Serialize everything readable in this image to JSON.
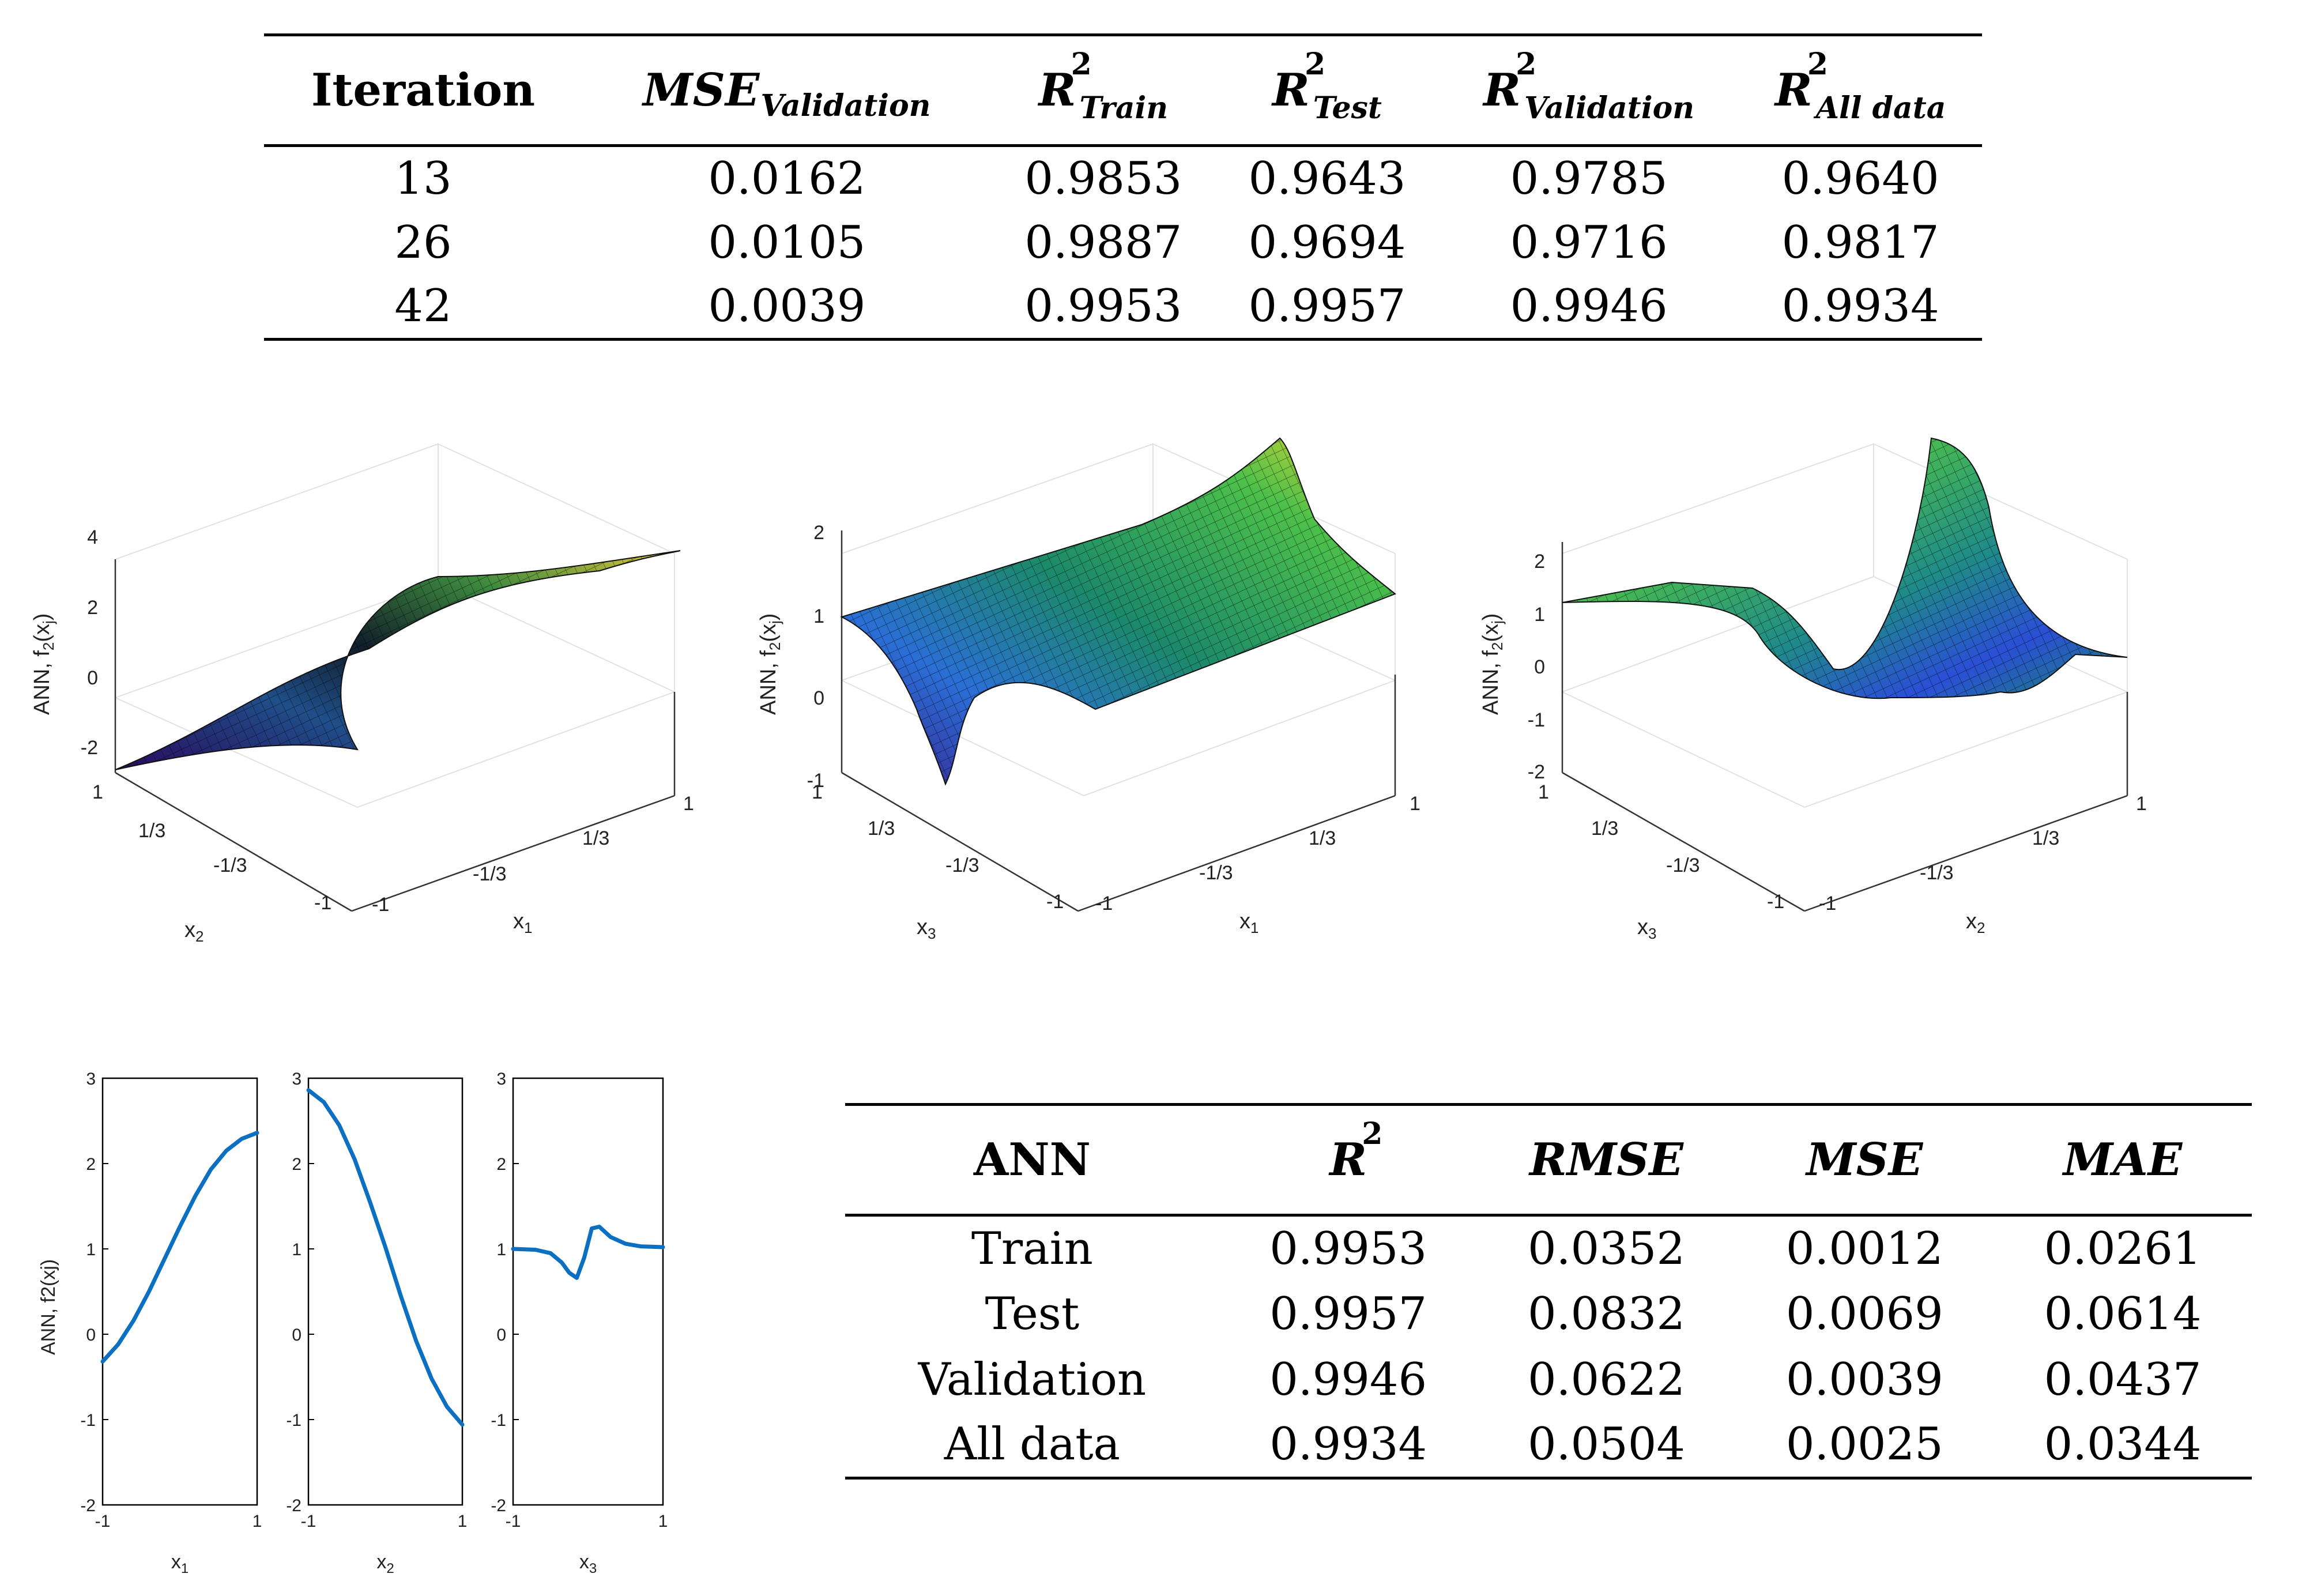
{
  "table1": {
    "headers": [
      "Iteration",
      "MSE",
      "Validation",
      "R",
      "2",
      "Train",
      "Test",
      "Validation",
      "All data"
    ],
    "rows": [
      [
        "13",
        "0.0162",
        "0.9853",
        "0.9643",
        "0.9785",
        "0.9640"
      ],
      [
        "26",
        "0.0105",
        "0.9887",
        "0.9694",
        "0.9716",
        "0.9817"
      ],
      [
        "42",
        "0.0039",
        "0.9953",
        "0.9957",
        "0.9946",
        "0.9934"
      ]
    ]
  },
  "table2": {
    "headers": [
      "ANN",
      "R",
      "2",
      "RMSE",
      "MSE",
      "MAE"
    ],
    "rows": [
      [
        "Train",
        "0.9953",
        "0.0352",
        "0.0012",
        "0.0261"
      ],
      [
        "Test",
        "0.9957",
        "0.0832",
        "0.0069",
        "0.0614"
      ],
      [
        "Validation",
        "0.9946",
        "0.0622",
        "0.0039",
        "0.0437"
      ],
      [
        "All data",
        "0.9934",
        "0.0504",
        "0.0025",
        "0.0344"
      ]
    ]
  },
  "surfaces": [
    {
      "zlabel": "ANN, f",
      "zlabel_sub": "2",
      "zlabel_arg": "(x",
      "zlabel_arg_sub": "j",
      "zlabel_close": ")",
      "zticks": [
        "4",
        "2",
        "0",
        "-2"
      ],
      "left_axis": "x",
      "left_axis_sub": "2",
      "right_axis": "x",
      "right_axis_sub": "1",
      "left_ticks": [
        "1",
        "1/3",
        "-1/3",
        "-1"
      ],
      "right_ticks": [
        "-1",
        "-1/3",
        "1/3",
        "1"
      ]
    },
    {
      "zlabel": "ANN, f",
      "zlabel_sub": "2",
      "zlabel_arg": "(x",
      "zlabel_arg_sub": "j",
      "zlabel_close": ")",
      "zticks": [
        "2",
        "1",
        "0",
        "-1"
      ],
      "left_axis": "x",
      "left_axis_sub": "3",
      "right_axis": "x",
      "right_axis_sub": "1",
      "left_ticks": [
        "1",
        "1/3",
        "-1/3",
        "-1"
      ],
      "right_ticks": [
        "-1",
        "-1/3",
        "1/3",
        "1"
      ]
    },
    {
      "zlabel": "ANN, f",
      "zlabel_sub": "2",
      "zlabel_arg": "(x",
      "zlabel_arg_sub": "j",
      "zlabel_close": ")",
      "zticks": [
        "2",
        "1",
        "0",
        "-1",
        "-2"
      ],
      "left_axis": "x",
      "left_axis_sub": "3",
      "right_axis": "x",
      "right_axis_sub": "2",
      "left_ticks": [
        "1",
        "1/3",
        "-1/3",
        "-1"
      ],
      "right_ticks": [
        "-1",
        "-1/3",
        "1/3",
        "1"
      ]
    }
  ],
  "chart_data": [
    {
      "type": "line",
      "title": "",
      "xlabel": "x1",
      "ylabel": "ANN, f2(xj)",
      "xlim": [
        -1,
        1
      ],
      "ylim": [
        -2,
        3
      ],
      "xticks": [
        "-1",
        "1"
      ],
      "yticks": [
        "3",
        "2",
        "1",
        "0",
        "-1",
        "-2"
      ],
      "x": [
        -1,
        -0.8,
        -0.6,
        -0.4,
        -0.2,
        0,
        0.2,
        0.4,
        0.6,
        0.8,
        1
      ],
      "series": [
        {
          "name": "f2(x1)",
          "color": "#0b6fc2",
          "values": [
            -0.32,
            -0.12,
            0.16,
            0.5,
            0.88,
            1.26,
            1.62,
            1.93,
            2.15,
            2.29,
            2.36
          ]
        }
      ]
    },
    {
      "type": "line",
      "title": "",
      "xlabel": "x2",
      "ylabel": "",
      "xlim": [
        -1,
        1
      ],
      "ylim": [
        -2,
        3
      ],
      "xticks": [
        "-1",
        "1"
      ],
      "yticks": [
        "3",
        "2",
        "1",
        "0",
        "-1",
        "-2"
      ],
      "x": [
        -1,
        -0.8,
        -0.6,
        -0.4,
        -0.2,
        0,
        0.2,
        0.4,
        0.6,
        0.8,
        1
      ],
      "series": [
        {
          "name": "f2(x2)",
          "color": "#0b6fc2",
          "values": [
            2.86,
            2.72,
            2.45,
            2.05,
            1.55,
            1.02,
            0.45,
            -0.08,
            -0.52,
            -0.85,
            -1.06
          ]
        }
      ]
    },
    {
      "type": "line",
      "title": "",
      "xlabel": "x3",
      "ylabel": "",
      "xlim": [
        -1,
        1
      ],
      "ylim": [
        -2,
        3
      ],
      "xticks": [
        "-1",
        "1"
      ],
      "yticks": [
        "3",
        "2",
        "1",
        "0",
        "-1",
        "-2"
      ],
      "x": [
        -1,
        -0.7,
        -0.5,
        -0.35,
        -0.25,
        -0.15,
        -0.05,
        0.05,
        0.15,
        0.3,
        0.5,
        0.7,
        1
      ],
      "series": [
        {
          "name": "f2(x3)",
          "color": "#0b6fc2",
          "values": [
            1.0,
            0.99,
            0.95,
            0.84,
            0.72,
            0.66,
            0.9,
            1.24,
            1.26,
            1.14,
            1.06,
            1.03,
            1.02
          ]
        }
      ]
    }
  ],
  "colors": {
    "line": "#0b6fc2",
    "axis": "#000000",
    "grid": "#e6e6e6",
    "mesh": "#111111"
  }
}
